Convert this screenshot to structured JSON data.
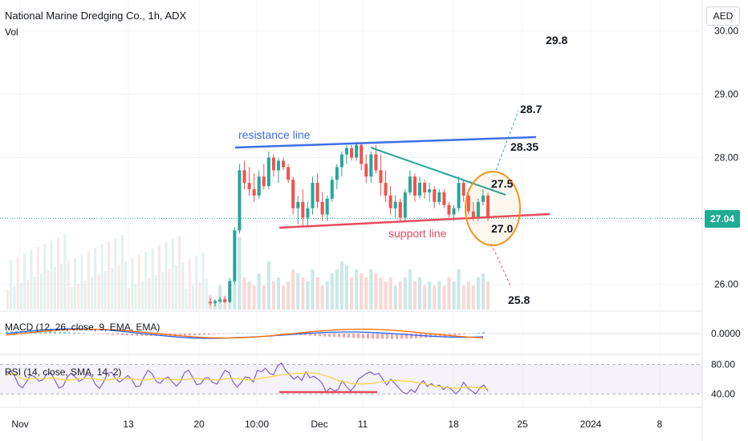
{
  "header": {
    "title": "National Marine Dredging Co., 1h, ADX",
    "volume_label": "Vol",
    "currency_button": "AED",
    "last_price": "27.04"
  },
  "indicators": {
    "macd_label": "MACD (12, 26, close, 9, EMA, EMA)",
    "rsi_label": "RSI (14, close, SMA, 14, 2)"
  },
  "colors": {
    "up": "#26a69a",
    "down": "#ef5350",
    "resistance": "#3d6fe6",
    "support": "#e84a5f",
    "triangle": "#26a69a",
    "circle": "#f7931a",
    "macd": "#2962ff",
    "signal": "#ff6d00",
    "rsi": "#7e57c2",
    "rsi_ma": "#f5d547"
  },
  "chart_data": {
    "type": "candlestick",
    "price_axis": {
      "ticks": [
        "30.00",
        "29.00",
        "28.00",
        "27.00",
        "26.00"
      ],
      "values": [
        30,
        29,
        28,
        27,
        26
      ],
      "range": [
        25.6,
        30.3
      ]
    },
    "time_axis": [
      "Nov",
      "13",
      "20",
      "10:00",
      "Dec",
      "11",
      "18",
      "25",
      "2024",
      "8"
    ],
    "macd_axis": [
      "0.0000"
    ],
    "rsi_axis": [
      "80.00",
      "40.00"
    ],
    "annotations": {
      "resistance_label": "resistance line",
      "support_label": "support line",
      "targets": [
        {
          "label": "29.8",
          "price": 29.8
        },
        {
          "label": "28.7",
          "price": 28.7
        },
        {
          "label": "28.35",
          "price": 28.35
        },
        {
          "label": "27.5",
          "price": 27.5
        },
        {
          "label": "27.0",
          "price": 27.0
        },
        {
          "label": "25.8",
          "price": 25.8
        }
      ]
    },
    "candles": [
      [
        25.72,
        25.78,
        25.66,
        25.7
      ],
      [
        25.7,
        25.76,
        25.65,
        25.73
      ],
      [
        25.73,
        25.8,
        25.7,
        25.76
      ],
      [
        25.76,
        25.82,
        25.7,
        25.72
      ],
      [
        25.72,
        26.1,
        25.7,
        26.05
      ],
      [
        26.05,
        26.9,
        26.0,
        26.85
      ],
      [
        26.85,
        27.9,
        26.8,
        27.8
      ],
      [
        27.8,
        27.95,
        27.5,
        27.6
      ],
      [
        27.6,
        27.85,
        27.4,
        27.5
      ],
      [
        27.5,
        27.75,
        27.3,
        27.4
      ],
      [
        27.4,
        27.8,
        27.35,
        27.7
      ],
      [
        27.7,
        27.9,
        27.5,
        27.55
      ],
      [
        27.55,
        28.1,
        27.5,
        28.0
      ],
      [
        28.0,
        28.05,
        27.7,
        27.8
      ],
      [
        27.8,
        28.0,
        27.6,
        27.95
      ],
      [
        27.95,
        28.0,
        27.8,
        27.85
      ],
      [
        27.85,
        27.9,
        27.6,
        27.65
      ],
      [
        27.65,
        27.7,
        27.1,
        27.2
      ],
      [
        27.2,
        27.4,
        26.95,
        27.3
      ],
      [
        27.3,
        27.5,
        26.9,
        27.05
      ],
      [
        27.05,
        27.3,
        26.92,
        27.2
      ],
      [
        27.2,
        27.7,
        27.1,
        27.6
      ],
      [
        27.6,
        27.75,
        27.2,
        27.3
      ],
      [
        27.3,
        27.45,
        27.0,
        27.1
      ],
      [
        27.1,
        27.4,
        27.0,
        27.35
      ],
      [
        27.35,
        27.7,
        27.3,
        27.65
      ],
      [
        27.65,
        27.9,
        27.5,
        27.85
      ],
      [
        27.85,
        28.1,
        27.7,
        28.05
      ],
      [
        28.05,
        28.2,
        27.9,
        28.15
      ],
      [
        28.15,
        28.2,
        27.95,
        28.0
      ],
      [
        28.0,
        28.25,
        27.95,
        28.2
      ],
      [
        28.2,
        28.25,
        27.8,
        27.9
      ],
      [
        27.9,
        28.05,
        27.6,
        27.7
      ],
      [
        27.7,
        28.1,
        27.6,
        28.05
      ],
      [
        28.05,
        28.2,
        27.75,
        27.8
      ],
      [
        27.8,
        28.05,
        27.4,
        27.6
      ],
      [
        27.6,
        27.8,
        27.3,
        27.4
      ],
      [
        27.4,
        27.55,
        27.1,
        27.2
      ],
      [
        27.2,
        27.4,
        27.05,
        27.3
      ],
      [
        27.3,
        27.35,
        27.0,
        27.05
      ],
      [
        27.05,
        27.5,
        27.0,
        27.45
      ],
      [
        27.45,
        27.8,
        27.4,
        27.7
      ],
      [
        27.7,
        27.75,
        27.3,
        27.4
      ],
      [
        27.4,
        27.7,
        27.35,
        27.6
      ],
      [
        27.6,
        27.65,
        27.35,
        27.45
      ],
      [
        27.45,
        27.6,
        27.3,
        27.5
      ],
      [
        27.5,
        27.55,
        27.2,
        27.3
      ],
      [
        27.3,
        27.5,
        27.25,
        27.45
      ],
      [
        27.45,
        27.5,
        27.2,
        27.25
      ],
      [
        27.25,
        27.3,
        27.05,
        27.1
      ],
      [
        27.1,
        27.25,
        27.0,
        27.2
      ],
      [
        27.2,
        27.7,
        27.15,
        27.6
      ],
      [
        27.6,
        27.65,
        27.3,
        27.4
      ],
      [
        27.4,
        27.5,
        27.1,
        27.15
      ],
      [
        27.15,
        27.3,
        27.0,
        27.05
      ],
      [
        27.05,
        27.35,
        27.0,
        27.3
      ],
      [
        27.3,
        27.5,
        27.25,
        27.4
      ],
      [
        27.4,
        27.45,
        27.0,
        27.04
      ]
    ],
    "volume": [
      0.18,
      0.12,
      0.3,
      0.15,
      0.25,
      0.55,
      0.9,
      0.4,
      0.35,
      0.3,
      0.45,
      0.3,
      0.6,
      0.35,
      0.4,
      0.3,
      0.35,
      0.5,
      0.45,
      0.4,
      0.35,
      0.5,
      0.4,
      0.3,
      0.35,
      0.45,
      0.5,
      0.6,
      0.55,
      0.4,
      0.5,
      0.45,
      0.4,
      0.5,
      0.45,
      0.4,
      0.35,
      0.4,
      0.3,
      0.35,
      0.4,
      0.5,
      0.35,
      0.4,
      0.3,
      0.35,
      0.3,
      0.35,
      0.3,
      0.4,
      0.35,
      0.5,
      0.3,
      0.35,
      0.3,
      0.4,
      0.45,
      0.35
    ],
    "rsi": [
      72,
      70,
      75,
      68,
      66,
      78,
      82,
      72,
      66,
      60,
      64,
      58,
      70,
      62,
      64,
      60,
      55,
      42,
      48,
      44,
      46,
      58,
      50,
      44,
      50,
      60,
      64,
      68,
      70,
      66,
      68,
      60,
      52,
      60,
      54,
      48,
      42,
      40,
      46,
      42,
      52,
      58,
      50,
      54,
      50,
      52,
      46,
      50,
      46,
      40,
      45,
      56,
      48,
      44,
      40,
      48,
      52,
      44
    ]
  }
}
